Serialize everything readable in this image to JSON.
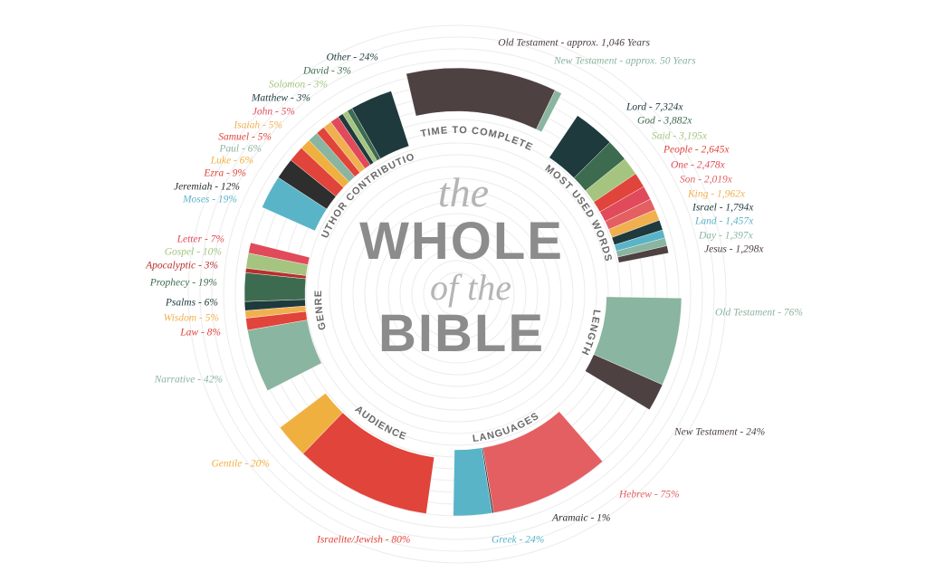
{
  "title": {
    "the": "the",
    "whole": "WHOLE",
    "of_the": "of the",
    "bible": "BIBLE"
  },
  "chart_data": {
    "type": "radial-bar",
    "title": "the WHOLE of the BIBLE",
    "groups": [
      {
        "name": "TIME TO COMPLETE",
        "segments": [
          {
            "label": "Old Testament - approx. 1,046 Years",
            "value": 1046,
            "color": "#4e4142"
          },
          {
            "label": "New Testament - approx. 50 Years",
            "value": 50,
            "color": "#8ab5a0"
          }
        ]
      },
      {
        "name": "MOST USED WORDS",
        "segments": [
          {
            "label": "Lord - 7,324x",
            "value": 7324,
            "color": "#1e3a3c"
          },
          {
            "label": "God - 3,882x",
            "value": 3882,
            "color": "#3d6b4f"
          },
          {
            "label": "Said - 3,195x",
            "value": 3195,
            "color": "#a5c47f"
          },
          {
            "label": "People - 2,645x",
            "value": 2645,
            "color": "#e0443a"
          },
          {
            "label": "One - 2,478x",
            "value": 2478,
            "color": "#e04a5a"
          },
          {
            "label": "Son - 2,019x",
            "value": 2019,
            "color": "#e35f62"
          },
          {
            "label": "King - 1,962x",
            "value": 1962,
            "color": "#f0b050"
          },
          {
            "label": "Israel - 1,794x",
            "value": 1794,
            "color": "#1e3a3c"
          },
          {
            "label": "Land - 1,457x",
            "value": 1457,
            "color": "#5ab4c8"
          },
          {
            "label": "Day - 1,397x",
            "value": 1397,
            "color": "#8ab5a0"
          },
          {
            "label": "Jesus - 1,298x",
            "value": 1298,
            "color": "#4e4142"
          }
        ]
      },
      {
        "name": "LENGTH",
        "segments": [
          {
            "label": "Old Testament - 76%",
            "value": 76,
            "color": "#8ab5a0"
          },
          {
            "label": "New Testament - 24%",
            "value": 24,
            "color": "#4e4142"
          }
        ]
      },
      {
        "name": "LANGUAGES",
        "segments": [
          {
            "label": "Hebrew - 75%",
            "value": 75,
            "color": "#e35f62"
          },
          {
            "label": "Aramaic - 1%",
            "value": 1,
            "color": "#2e2e2e"
          },
          {
            "label": "Greek - 24%",
            "value": 24,
            "color": "#5ab4c8"
          }
        ]
      },
      {
        "name": "AUDIENCE",
        "segments": [
          {
            "label": "Israelite/Jewish - 80%",
            "value": 80,
            "color": "#e0443a"
          },
          {
            "label": "Gentile - 20%",
            "value": 20,
            "color": "#f0b040"
          }
        ]
      },
      {
        "name": "GENRE",
        "segments": [
          {
            "label": "Narrative - 42%",
            "value": 42,
            "color": "#8ab5a0"
          },
          {
            "label": "Law - 8%",
            "value": 8,
            "color": "#e0443a"
          },
          {
            "label": "Wisdom - 5%",
            "value": 5,
            "color": "#f0b050"
          },
          {
            "label": "Psalms - 6%",
            "value": 6,
            "color": "#1e3a3c"
          },
          {
            "label": "Prophecy - 19%",
            "value": 19,
            "color": "#3d6b4f"
          },
          {
            "label": "Apocalyptic - 3%",
            "value": 3,
            "color": "#b8302f"
          },
          {
            "label": "Gospel - 10%",
            "value": 10,
            "color": "#a5c47f"
          },
          {
            "label": "Letter - 7%",
            "value": 7,
            "color": "#e04a5a"
          }
        ]
      },
      {
        "name": "AUTHOR CONTRIBUTION",
        "segments": [
          {
            "label": "Moses - 19%",
            "value": 19,
            "color": "#5ab4c8"
          },
          {
            "label": "Jeremiah - 12%",
            "value": 12,
            "color": "#2e2e2e"
          },
          {
            "label": "Ezra - 9%",
            "value": 9,
            "color": "#e0443a"
          },
          {
            "label": "Luke - 6%",
            "value": 6,
            "color": "#f0b040"
          },
          {
            "label": "Paul - 6%",
            "value": 6,
            "color": "#8ab5a0"
          },
          {
            "label": "Samuel - 5%",
            "value": 5,
            "color": "#e0443a"
          },
          {
            "label": "Isaiah - 5%",
            "value": 5,
            "color": "#f0b050"
          },
          {
            "label": "John - 5%",
            "value": 5,
            "color": "#e04a5a"
          },
          {
            "label": "Matthew - 3%",
            "value": 3,
            "color": "#1e3a3c"
          },
          {
            "label": "Solomon - 3%",
            "value": 3,
            "color": "#a5c47f"
          },
          {
            "label": "David - 3%",
            "value": 3,
            "color": "#3d6b4f"
          },
          {
            "label": "Other - 24%",
            "value": 24,
            "color": "#1e3a3c"
          }
        ]
      }
    ]
  }
}
